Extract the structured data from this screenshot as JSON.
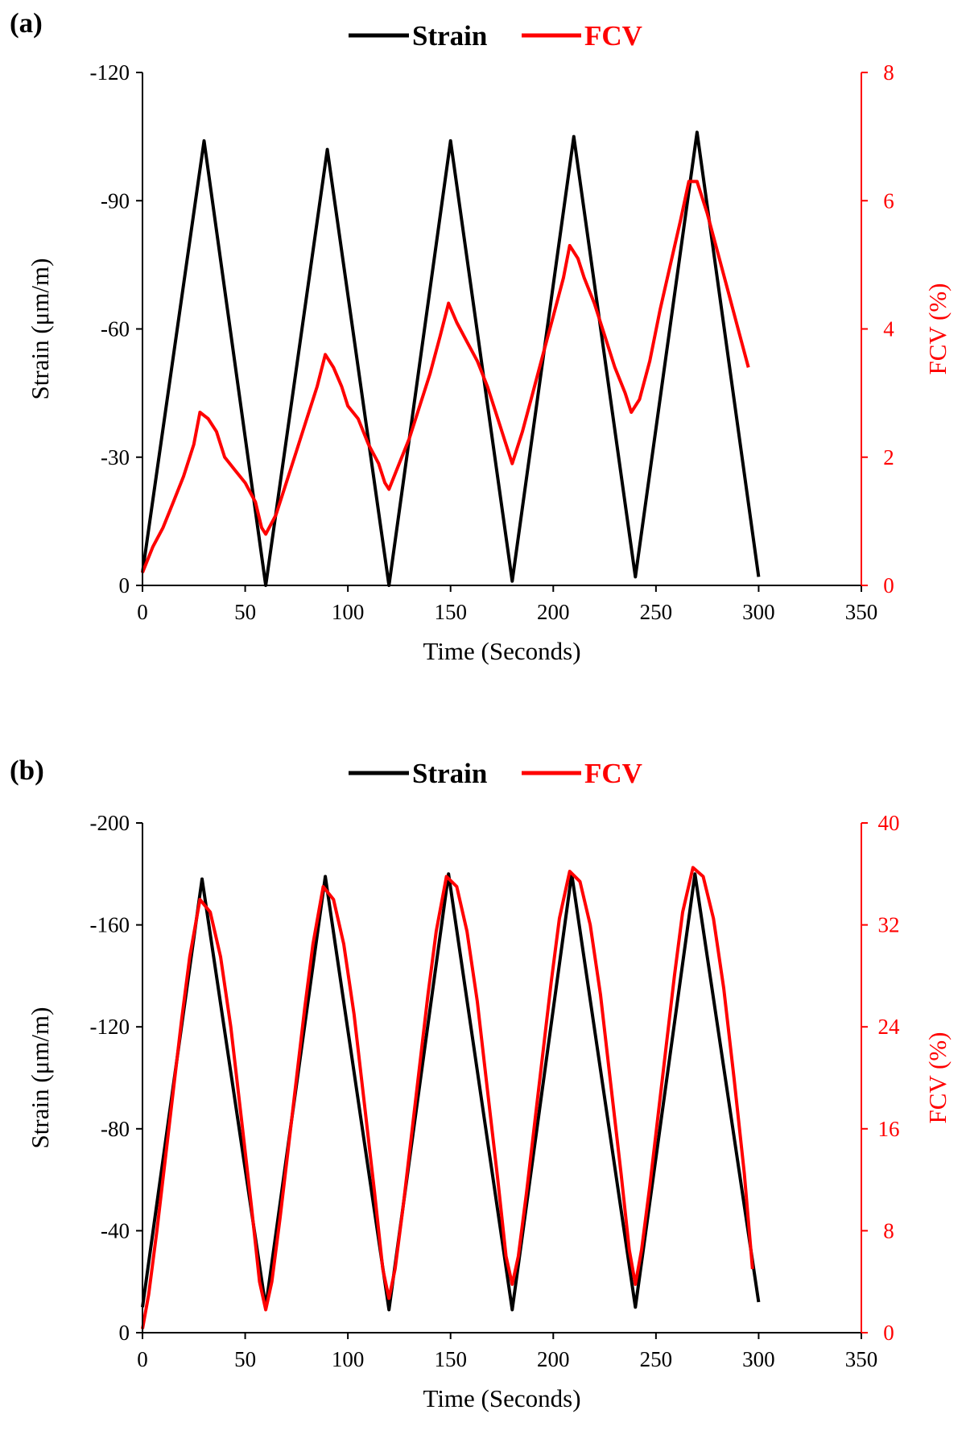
{
  "chart_data": [
    {
      "type": "line",
      "panel_label": "(a)",
      "xlabel": "Time (Seconds)",
      "ylabel": "Strain (μm/m)",
      "y2label": "FCV (%)",
      "xlim": [
        0,
        350
      ],
      "ylim": [
        0,
        -120
      ],
      "y2lim": [
        0,
        8
      ],
      "xticks": [
        0,
        50,
        100,
        150,
        200,
        250,
        300,
        350
      ],
      "yticks": [
        0,
        -30,
        -60,
        -90,
        -120
      ],
      "y2ticks": [
        0,
        2,
        4,
        6,
        8
      ],
      "legend_position": "top-center",
      "colors": {
        "strain": "#000000",
        "fcv": "#ff0000"
      },
      "series": [
        {
          "name": "Strain",
          "axis": "left",
          "x": [
            0,
            30,
            60,
            90,
            120,
            150,
            180,
            210,
            240,
            270,
            300
          ],
          "y": [
            -3,
            -104,
            0,
            -102,
            0,
            -104,
            -1,
            -105,
            -2,
            -106,
            -2
          ]
        },
        {
          "name": "FCV",
          "axis": "right",
          "x": [
            0,
            5,
            10,
            15,
            20,
            25,
            28,
            32,
            36,
            40,
            45,
            50,
            55,
            58,
            60,
            65,
            70,
            75,
            80,
            85,
            89,
            93,
            97,
            100,
            105,
            110,
            115,
            118,
            120,
            125,
            130,
            135,
            140,
            145,
            149,
            153,
            158,
            163,
            168,
            173,
            177,
            180,
            185,
            190,
            195,
            200,
            205,
            208,
            212,
            215,
            220,
            225,
            230,
            235,
            238,
            242,
            247,
            252,
            257,
            262,
            266,
            270,
            275,
            280,
            285,
            290,
            295
          ],
          "y": [
            0.2,
            0.6,
            0.9,
            1.3,
            1.7,
            2.2,
            2.7,
            2.6,
            2.4,
            2.0,
            1.8,
            1.6,
            1.3,
            0.9,
            0.8,
            1.1,
            1.6,
            2.1,
            2.6,
            3.1,
            3.6,
            3.4,
            3.1,
            2.8,
            2.6,
            2.2,
            1.9,
            1.6,
            1.5,
            1.9,
            2.3,
            2.8,
            3.3,
            3.9,
            4.4,
            4.1,
            3.8,
            3.5,
            3.1,
            2.6,
            2.2,
            1.9,
            2.4,
            3.0,
            3.6,
            4.2,
            4.8,
            5.3,
            5.1,
            4.8,
            4.4,
            3.9,
            3.4,
            3.0,
            2.7,
            2.9,
            3.5,
            4.3,
            5.0,
            5.7,
            6.3,
            6.3,
            5.8,
            5.2,
            4.6,
            4.0,
            3.4
          ]
        }
      ]
    },
    {
      "type": "line",
      "panel_label": "(b)",
      "xlabel": "Time (Seconds)",
      "ylabel": "Strain (μm/m)",
      "y2label": "FCV (%)",
      "xlim": [
        0,
        350
      ],
      "ylim": [
        0,
        -200
      ],
      "y2lim": [
        0,
        40
      ],
      "xticks": [
        0,
        50,
        100,
        150,
        200,
        250,
        300,
        350
      ],
      "yticks": [
        0,
        -40,
        -80,
        -120,
        -160,
        -200
      ],
      "y2ticks": [
        0,
        8,
        16,
        24,
        32,
        40
      ],
      "legend_position": "top-center",
      "colors": {
        "strain": "#000000",
        "fcv": "#ff0000"
      },
      "series": [
        {
          "name": "Strain",
          "axis": "left",
          "x": [
            0,
            29,
            60,
            89,
            120,
            149,
            180,
            209,
            240,
            269,
            300
          ],
          "y": [
            -10,
            -178,
            -10,
            -179,
            -9,
            -180,
            -9,
            -180,
            -10,
            -180,
            -12
          ]
        },
        {
          "name": "FCV",
          "axis": "right",
          "x": [
            0,
            3,
            7,
            11,
            15,
            19,
            23,
            28,
            33,
            38,
            43,
            48,
            53,
            57,
            60,
            63,
            67,
            71,
            75,
            79,
            83,
            88,
            93,
            98,
            103,
            108,
            113,
            117,
            120,
            123,
            127,
            131,
            135,
            139,
            143,
            148,
            153,
            158,
            163,
            168,
            173,
            177,
            180,
            183,
            187,
            191,
            195,
            199,
            203,
            208,
            213,
            218,
            223,
            228,
            233,
            237,
            240,
            243,
            247,
            251,
            255,
            259,
            263,
            268,
            273,
            278,
            283,
            288,
            293,
            297
          ],
          "y": [
            0.3,
            3,
            8,
            13.5,
            19,
            24.5,
            29.5,
            34,
            33,
            29.5,
            24,
            17,
            10,
            4,
            1.8,
            4,
            9,
            14.5,
            20,
            25.5,
            30.5,
            35,
            34,
            30.5,
            25,
            18,
            11,
            5,
            2.7,
            5,
            10,
            15.5,
            21,
            26.5,
            31.5,
            35.8,
            35,
            31.5,
            26,
            19,
            12,
            6,
            3.8,
            6,
            11,
            16.5,
            22,
            27.5,
            32.5,
            36.2,
            35.4,
            32,
            26.5,
            19.5,
            12.5,
            6.5,
            3.8,
            6.5,
            11.5,
            17,
            22.5,
            28,
            33,
            36.5,
            35.8,
            32.5,
            27,
            20,
            12.5,
            5
          ]
        }
      ]
    }
  ]
}
